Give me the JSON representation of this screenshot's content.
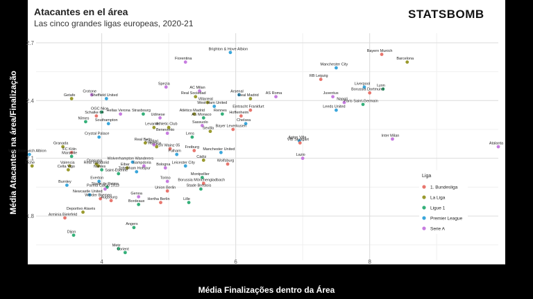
{
  "title": "Atacantes en el área",
  "subtitle": "Las cinco grandes ligas europeas, 2020-21",
  "brand": "STATSBOMB",
  "chart_data": {
    "type": "scatter",
    "xlabel": "Média Finalizações dentro da Área",
    "ylabel": "Média Atacantes na área/Finalização",
    "xlim": [
      3.02,
      9.92
    ],
    "ylim": [
      1.57,
      2.75
    ],
    "xticks": [
      4,
      6,
      8
    ],
    "yticks": [
      1.8,
      2.1,
      2.4,
      2.7
    ],
    "grid": true,
    "legend": {
      "title": "Liga",
      "placement": "right",
      "entries": [
        {
          "name": "1. Bundesliga",
          "color": "#e8766e"
        },
        {
          "name": "La Liga",
          "color": "#9a9a2e"
        },
        {
          "name": "Ligue 1",
          "color": "#35b07a"
        },
        {
          "name": "Premier League",
          "color": "#3aa6db"
        },
        {
          "name": "Serie A",
          "color": "#c77ce0"
        }
      ]
    },
    "points": [
      {
        "team": "Bayern Munich",
        "league": "1. Bundesliga",
        "x": 8.18,
        "y": 2.64
      },
      {
        "team": "Barcelona",
        "league": "La Liga",
        "x": 8.56,
        "y": 2.6
      },
      {
        "team": "Manchester City",
        "league": "Premier League",
        "x": 7.5,
        "y": 2.57
      },
      {
        "team": "RB Leipzig",
        "league": "1. Bundesliga",
        "x": 7.27,
        "y": 2.51
      },
      {
        "team": "Liverpool",
        "league": "Premier League",
        "x": 7.92,
        "y": 2.47
      },
      {
        "team": "Lyon",
        "league": "Ligue 1",
        "x": 8.2,
        "y": 2.46
      },
      {
        "team": "Borussia Dortmund",
        "league": "1. Bundesliga",
        "x": 8.0,
        "y": 2.44
      },
      {
        "team": "Juventus",
        "league": "Serie A",
        "x": 7.45,
        "y": 2.42
      },
      {
        "team": "Napoli",
        "league": "Serie A",
        "x": 7.62,
        "y": 2.39
      },
      {
        "team": "Paris Saint-Germain",
        "league": "Ligue 1",
        "x": 7.9,
        "y": 2.38
      },
      {
        "team": "Leeds United",
        "league": "Premier League",
        "x": 7.5,
        "y": 2.35
      },
      {
        "team": "Inter Milan",
        "league": "Serie A",
        "x": 8.34,
        "y": 2.2
      },
      {
        "team": "Atalanta",
        "league": "Serie A",
        "x": 9.92,
        "y": 2.16
      },
      {
        "team": "Brighton & Hove Albion",
        "league": "Premier League",
        "x": 5.92,
        "y": 2.65
      },
      {
        "team": "Fiorentina",
        "league": "Serie A",
        "x": 5.25,
        "y": 2.6
      },
      {
        "team": "Spezia",
        "league": "Serie A",
        "x": 4.96,
        "y": 2.47
      },
      {
        "team": "AC Milan",
        "league": "Serie A",
        "x": 5.46,
        "y": 2.45
      },
      {
        "team": "Real Sociedad",
        "league": "La Liga",
        "x": 5.4,
        "y": 2.42
      },
      {
        "team": "Arsenal",
        "league": "Premier League",
        "x": 6.05,
        "y": 2.43
      },
      {
        "team": "Real Madrid",
        "league": "La Liga",
        "x": 6.22,
        "y": 2.41
      },
      {
        "team": "AS Roma",
        "league": "Serie A",
        "x": 6.6,
        "y": 2.42
      },
      {
        "team": "Villarreal",
        "league": "La Liga",
        "x": 5.58,
        "y": 2.39
      },
      {
        "team": "West Ham United",
        "league": "Premier League",
        "x": 5.68,
        "y": 2.37
      },
      {
        "team": "Eintracht Frankfurt",
        "league": "1. Bundesliga",
        "x": 6.22,
        "y": 2.35
      },
      {
        "team": "Atlético Madrid",
        "league": "La Liga",
        "x": 5.38,
        "y": 2.33
      },
      {
        "team": "Rennes",
        "league": "Ligue 1",
        "x": 5.8,
        "y": 2.33
      },
      {
        "team": "Hoffenheim",
        "league": "1. Bundesliga",
        "x": 6.08,
        "y": 2.32
      },
      {
        "team": "AS Monaco",
        "league": "Ligue 1",
        "x": 5.52,
        "y": 2.31
      },
      {
        "team": "Chelsea",
        "league": "Premier League",
        "x": 6.15,
        "y": 2.28
      },
      {
        "team": "Sassuolo",
        "league": "Serie A",
        "x": 5.5,
        "y": 2.27
      },
      {
        "team": "Sevilla",
        "league": "La Liga",
        "x": 5.62,
        "y": 2.24
      },
      {
        "team": "Bayer Leverkusen",
        "league": "1. Bundesliga",
        "x": 5.96,
        "y": 2.25
      },
      {
        "team": "Lens",
        "league": "Ligue 1",
        "x": 5.35,
        "y": 2.21
      },
      {
        "team": "Aston Villa",
        "league": "Premier League",
        "x": 6.95,
        "y": 2.19
      },
      {
        "team": "VfB Stuttgart",
        "league": "1. Bundesliga",
        "x": 6.96,
        "y": 2.18
      },
      {
        "team": "Lazio",
        "league": "Serie A",
        "x": 7.0,
        "y": 2.1
      },
      {
        "team": "Crotone",
        "league": "Serie A",
        "x": 3.85,
        "y": 2.43
      },
      {
        "team": "Getafe",
        "league": "La Liga",
        "x": 3.55,
        "y": 2.41
      },
      {
        "team": "Sheffield United",
        "league": "Premier League",
        "x": 4.07,
        "y": 2.41
      },
      {
        "team": "OGC Nice",
        "league": "Ligue 1",
        "x": 4.0,
        "y": 2.34
      },
      {
        "team": "Schalke 04",
        "league": "1. Bundesliga",
        "x": 3.92,
        "y": 2.32
      },
      {
        "team": "Nîmes",
        "league": "Ligue 1",
        "x": 3.76,
        "y": 2.29
      },
      {
        "team": "Strasbourg",
        "league": "Ligue 1",
        "x": 4.62,
        "y": 2.33
      },
      {
        "team": "Hellas Verona",
        "league": "Serie A",
        "x": 4.28,
        "y": 2.33
      },
      {
        "team": "Southampton",
        "league": "Premier League",
        "x": 4.1,
        "y": 2.28
      },
      {
        "team": "Udinese",
        "league": "Serie A",
        "x": 4.87,
        "y": 2.31
      },
      {
        "team": "Levante",
        "league": "La Liga",
        "x": 4.78,
        "y": 2.26
      },
      {
        "team": "Athletic Club",
        "league": "La Liga",
        "x": 5.0,
        "y": 2.26
      },
      {
        "team": "Benevento",
        "league": "Serie A",
        "x": 4.98,
        "y": 2.23
      },
      {
        "team": "Crystal Palace",
        "league": "Premier League",
        "x": 3.96,
        "y": 2.21
      },
      {
        "team": "Granada",
        "league": "La Liga",
        "x": 3.42,
        "y": 2.16
      },
      {
        "team": "FC Köln",
        "league": "1. Bundesliga",
        "x": 3.55,
        "y": 2.13
      },
      {
        "team": "Real Betis",
        "league": "La Liga",
        "x": 4.65,
        "y": 2.18
      },
      {
        "team": "Cagliari",
        "league": "Serie A",
        "x": 4.78,
        "y": 2.17
      },
      {
        "team": "FSV Mainz 05",
        "league": "1. Bundesliga",
        "x": 5.02,
        "y": 2.15
      },
      {
        "team": "Huesca",
        "league": "La Liga",
        "x": 4.82,
        "y": 2.16
      },
      {
        "team": "Fulham",
        "league": "Premier League",
        "x": 5.12,
        "y": 2.12
      },
      {
        "team": "Freiburg",
        "league": "1. Bundesliga",
        "x": 5.38,
        "y": 2.14
      },
      {
        "team": "Manchester United",
        "league": "Premier League",
        "x": 5.78,
        "y": 2.13
      },
      {
        "team": "Cádiz",
        "league": "La Liga",
        "x": 5.52,
        "y": 2.09
      },
      {
        "team": "Wolfsburg",
        "league": "1. Bundesliga",
        "x": 5.88,
        "y": 2.07
      },
      {
        "team": "West Bromwich Albion",
        "league": "Premier League",
        "x": 2.92,
        "y": 2.12
      },
      {
        "team": "Elche",
        "league": "La Liga",
        "x": 2.96,
        "y": 2.06
      },
      {
        "team": "Marseille",
        "league": "Ligue 1",
        "x": 3.55,
        "y": 2.11
      },
      {
        "team": "Wolverhampton Wanderers",
        "league": "Premier League",
        "x": 4.46,
        "y": 2.08
      },
      {
        "team": "Osasuna",
        "league": "La Liga",
        "x": 3.92,
        "y": 2.07
      },
      {
        "team": "Valencia",
        "league": "La Liga",
        "x": 3.52,
        "y": 2.06
      },
      {
        "team": "Real Valladolid",
        "league": "La Liga",
        "x": 3.95,
        "y": 2.06
      },
      {
        "team": "Nantes",
        "league": "Ligue 1",
        "x": 4.0,
        "y": 2.04
      },
      {
        "team": "Eibar",
        "league": "La Liga",
        "x": 4.38,
        "y": 2.05
      },
      {
        "team": "Sampdoria",
        "league": "Serie A",
        "x": 4.63,
        "y": 2.06
      },
      {
        "team": "Celta Vigo",
        "league": "La Liga",
        "x": 3.5,
        "y": 2.04
      },
      {
        "team": "Tottenham Hotspur",
        "league": "Premier League",
        "x": 4.52,
        "y": 2.03
      },
      {
        "team": "Bologna",
        "league": "Serie A",
        "x": 4.95,
        "y": 2.05
      },
      {
        "team": "Leicester City",
        "league": "Premier League",
        "x": 5.25,
        "y": 2.06
      },
      {
        "team": "Saint-Étienne",
        "league": "Ligue 1",
        "x": 4.25,
        "y": 2.02
      },
      {
        "team": "Montpellier",
        "league": "Ligue 1",
        "x": 5.5,
        "y": 2.0
      },
      {
        "team": "Everton",
        "league": "Premier League",
        "x": 3.96,
        "y": 1.98
      },
      {
        "team": "Torino",
        "league": "Serie A",
        "x": 4.98,
        "y": 1.98
      },
      {
        "team": "Borussia Mönchengladbach",
        "league": "1. Bundesliga",
        "x": 5.52,
        "y": 1.97
      },
      {
        "team": "Stade de Reims",
        "league": "Ligue 1",
        "x": 4.08,
        "y": 1.95
      },
      {
        "team": "Burnley",
        "league": "Premier League",
        "x": 3.48,
        "y": 1.96
      },
      {
        "team": "Parma Calcio 1913",
        "league": "Serie A",
        "x": 4.05,
        "y": 1.94
      },
      {
        "team": "Union Berlin",
        "league": "1. Bundesliga",
        "x": 4.98,
        "y": 1.93
      },
      {
        "team": "Stade Brestois",
        "league": "Ligue 1",
        "x": 5.48,
        "y": 1.94
      },
      {
        "team": "Newcastle United",
        "league": "Premier League",
        "x": 3.82,
        "y": 1.91
      },
      {
        "team": "Genoa",
        "league": "Serie A",
        "x": 4.55,
        "y": 1.9
      },
      {
        "team": "Werder Bremen",
        "league": "1. Bundesliga",
        "x": 3.98,
        "y": 1.89
      },
      {
        "team": "Augsburg",
        "league": "1. Bundesliga",
        "x": 4.14,
        "y": 1.88
      },
      {
        "team": "Hertha Berlin",
        "league": "1. Bundesliga",
        "x": 4.88,
        "y": 1.87
      },
      {
        "team": "Lille",
        "league": "Ligue 1",
        "x": 5.3,
        "y": 1.87
      },
      {
        "team": "Bordeaux",
        "league": "Ligue 1",
        "x": 4.55,
        "y": 1.86
      },
      {
        "team": "Deportivo Alavés",
        "league": "La Liga",
        "x": 3.72,
        "y": 1.82
      },
      {
        "team": "Arminia Bielefeld",
        "league": "1. Bundesliga",
        "x": 3.45,
        "y": 1.79
      },
      {
        "team": "Angers",
        "league": "Ligue 1",
        "x": 4.48,
        "y": 1.74
      },
      {
        "team": "Dijon",
        "league": "Ligue 1",
        "x": 3.58,
        "y": 1.7
      },
      {
        "team": "Metz",
        "league": "Ligue 1",
        "x": 4.25,
        "y": 1.63
      },
      {
        "team": "Lorient",
        "league": "Ligue 1",
        "x": 4.35,
        "y": 1.61
      }
    ]
  }
}
